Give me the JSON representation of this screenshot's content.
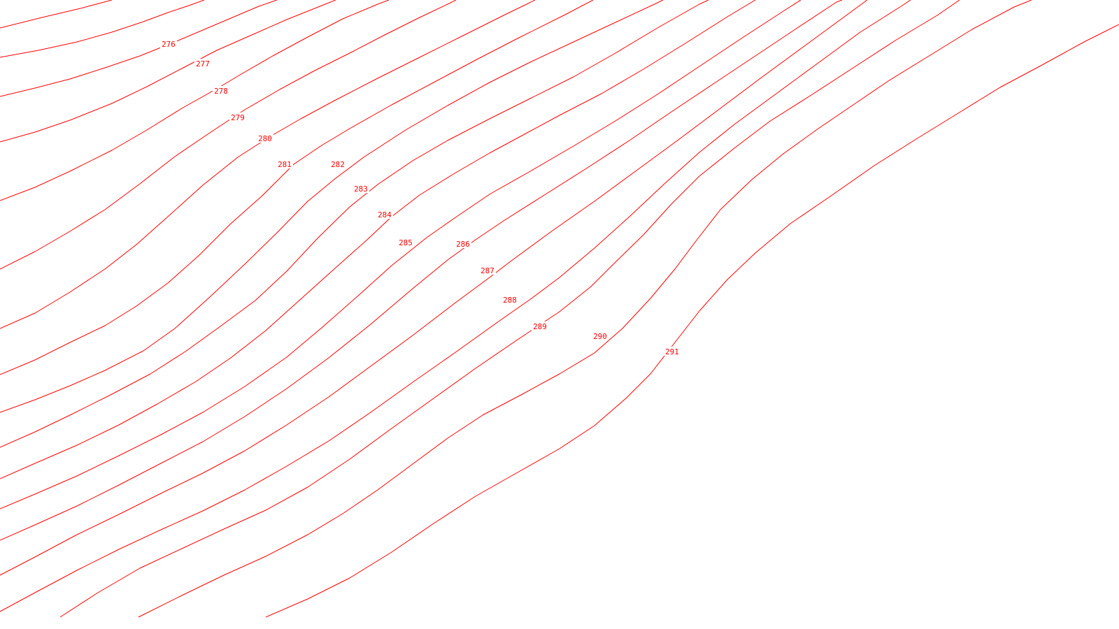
{
  "map": {
    "background_color": "#ffffff",
    "contour_color": "#ff0000",
    "contours": [
      {
        "elevation": null,
        "label": ""
      },
      {
        "elevation": 276,
        "label": "276"
      },
      {
        "elevation": 277,
        "label": "277"
      },
      {
        "elevation": 278,
        "label": "278"
      },
      {
        "elevation": 279,
        "label": "279"
      },
      {
        "elevation": 280,
        "label": "280"
      },
      {
        "elevation": 281,
        "label": "281"
      },
      {
        "elevation": 282,
        "label": "282"
      },
      {
        "elevation": 283,
        "label": "283"
      },
      {
        "elevation": 284,
        "label": "284"
      },
      {
        "elevation": 285,
        "label": "285"
      },
      {
        "elevation": 286,
        "label": "286"
      },
      {
        "elevation": 287,
        "label": "287"
      },
      {
        "elevation": 288,
        "label": "288"
      },
      {
        "elevation": 289,
        "label": "289"
      },
      {
        "elevation": 290,
        "label": "290"
      },
      {
        "elevation": 291,
        "label": "291"
      },
      {
        "elevation": null,
        "label": ""
      }
    ]
  }
}
